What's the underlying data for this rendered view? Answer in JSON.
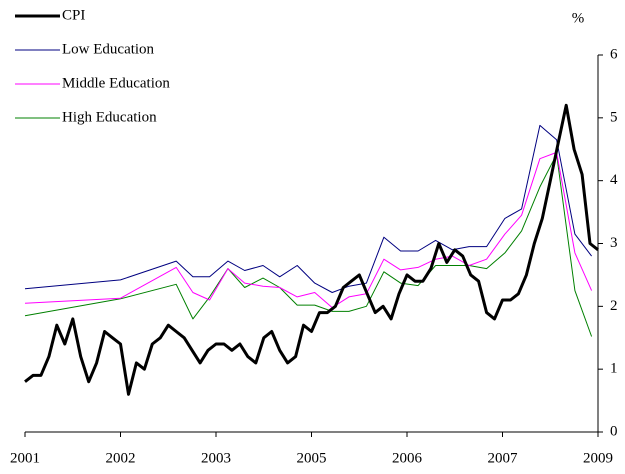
{
  "chart_data": {
    "type": "line",
    "y_axis_label": "%",
    "y_axis_side": "right",
    "legend_position": "top-left",
    "xlim": [
      0,
      72
    ],
    "xticks": [
      {
        "value": 0,
        "label": "2001"
      },
      {
        "value": 12,
        "label": "2002"
      },
      {
        "value": 24,
        "label": "2003"
      },
      {
        "value": 36,
        "label": "2005"
      },
      {
        "value": 48,
        "label": "2006"
      },
      {
        "value": 60,
        "label": "2007"
      },
      {
        "value": 72,
        "label": "2009"
      }
    ],
    "ylim": [
      0,
      6
    ],
    "yticks": [
      0,
      1,
      2,
      3,
      4,
      5,
      6
    ],
    "series": [
      {
        "name": "CPI",
        "color": "#000000",
        "width": 3,
        "x": [
          0,
          1,
          2,
          3,
          4,
          5,
          6,
          7,
          8,
          9,
          10,
          11,
          12,
          13,
          14,
          15,
          16,
          17,
          18,
          19,
          20,
          21,
          22,
          23,
          24,
          25,
          26,
          27,
          28,
          29,
          30,
          31,
          32,
          33,
          34,
          35,
          36,
          37,
          38,
          39,
          40,
          41,
          42,
          43,
          44,
          45,
          46,
          47,
          48,
          49,
          50,
          51,
          52,
          53,
          54,
          55,
          56,
          57,
          58,
          59,
          60,
          61,
          62,
          63,
          64,
          65,
          66,
          67,
          68,
          69,
          70,
          71,
          72
        ],
        "values": [
          0.8,
          0.9,
          0.9,
          1.2,
          1.7,
          1.4,
          1.8,
          1.2,
          0.8,
          1.1,
          1.6,
          1.5,
          1.4,
          0.6,
          1.1,
          1.0,
          1.4,
          1.5,
          1.7,
          1.6,
          1.5,
          1.3,
          1.1,
          1.3,
          1.4,
          1.4,
          1.3,
          1.4,
          1.2,
          1.1,
          1.5,
          1.6,
          1.3,
          1.1,
          1.2,
          1.7,
          1.6,
          1.9,
          1.9,
          2.0,
          2.3,
          2.4,
          2.5,
          2.2,
          1.9,
          2.0,
          1.8,
          2.2,
          2.5,
          2.4,
          2.4,
          2.6,
          3.0,
          2.7,
          2.9,
          2.8,
          2.5,
          2.4,
          1.9,
          1.8,
          2.1,
          2.1,
          2.2,
          2.5,
          3.0,
          3.4,
          4.0,
          4.6,
          5.2,
          4.5,
          4.1,
          3.0,
          2.9
        ]
      },
      {
        "name": "Low Education",
        "color": "#000080",
        "width": 1,
        "x": [
          0,
          12,
          19,
          21.1,
          23.2,
          25.5,
          27.6,
          29.9,
          32,
          34.2,
          36.4,
          38.6,
          40.7,
          42.9,
          45.1,
          47.2,
          49.4,
          51.6,
          53.7,
          55.8,
          58,
          60.3,
          62.4,
          64.7,
          66.8,
          69.1,
          71.2
        ],
        "values": [
          2.28,
          2.42,
          2.72,
          2.47,
          2.47,
          2.72,
          2.57,
          2.65,
          2.47,
          2.65,
          2.37,
          2.22,
          2.32,
          2.37,
          3.1,
          2.88,
          2.88,
          3.05,
          2.9,
          2.95,
          2.95,
          3.4,
          3.55,
          4.88,
          4.65,
          3.15,
          2.8
        ]
      },
      {
        "name": "Middle Education",
        "color": "#ff00ff",
        "width": 1,
        "x": [
          0,
          12,
          19,
          21.1,
          23.2,
          25.5,
          27.6,
          29.9,
          32,
          34.2,
          36.4,
          38.6,
          40.7,
          42.9,
          45.1,
          47.2,
          49.4,
          51.6,
          53.7,
          55.8,
          58,
          60.3,
          62.4,
          64.7,
          66.8,
          69.1,
          71.2
        ],
        "values": [
          2.05,
          2.13,
          2.62,
          2.22,
          2.1,
          2.6,
          2.37,
          2.32,
          2.3,
          2.15,
          2.22,
          1.98,
          2.15,
          2.2,
          2.75,
          2.58,
          2.62,
          2.75,
          2.8,
          2.65,
          2.75,
          3.15,
          3.45,
          4.35,
          4.45,
          2.85,
          2.25
        ]
      },
      {
        "name": "High Education",
        "color": "#008000",
        "width": 1,
        "x": [
          0,
          12,
          19,
          21.1,
          23.2,
          25.5,
          27.6,
          29.9,
          32,
          34.2,
          36.4,
          38.6,
          40.7,
          42.9,
          45.1,
          47.2,
          49.4,
          51.6,
          53.7,
          55.8,
          58,
          60.3,
          62.4,
          64.7,
          66.8,
          69.1,
          71.2
        ],
        "values": [
          1.85,
          2.12,
          2.35,
          1.8,
          2.15,
          2.6,
          2.3,
          2.45,
          2.3,
          2.02,
          2.02,
          1.92,
          1.92,
          2.0,
          2.55,
          2.37,
          2.33,
          2.65,
          2.65,
          2.65,
          2.6,
          2.85,
          3.2,
          3.9,
          4.42,
          2.25,
          1.52
        ]
      }
    ]
  }
}
